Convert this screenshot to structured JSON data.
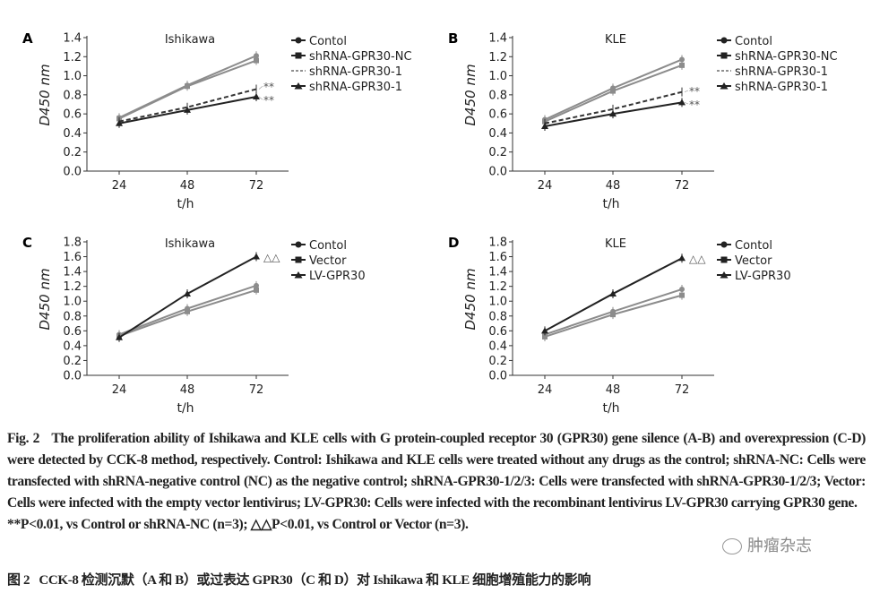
{
  "chart_data": [
    {
      "panel": "A",
      "type": "line",
      "title": "Ishikawa",
      "xlabel": "t/h",
      "ylabel": "D450 nm",
      "x": [
        24,
        48,
        72
      ],
      "ylim": [
        0,
        1.4
      ],
      "yticks": [
        0.0,
        0.2,
        0.4,
        0.6,
        0.8,
        1.0,
        1.2,
        1.4
      ],
      "series": [
        {
          "name": "Contol",
          "marker": "circle",
          "color": "#8c8c8c",
          "dash": false,
          "values": [
            0.56,
            0.9,
            1.21
          ]
        },
        {
          "name": "shRNA-GPR30-NC",
          "marker": "square",
          "color": "#8c8c8c",
          "dash": false,
          "values": [
            0.55,
            0.89,
            1.16
          ]
        },
        {
          "name": "shRNA-GPR30-1",
          "marker": "none",
          "color": "#333333",
          "dash": true,
          "values": [
            0.52,
            0.67,
            0.86
          ],
          "annotation": "**"
        },
        {
          "name": "shRNA-GPR30-1",
          "marker": "triangle",
          "color": "#222222",
          "dash": false,
          "values": [
            0.5,
            0.64,
            0.78
          ],
          "annotation": "**"
        }
      ]
    },
    {
      "panel": "B",
      "type": "line",
      "title": "KLE",
      "xlabel": "t/h",
      "ylabel": "D450 nm",
      "x": [
        24,
        48,
        72
      ],
      "ylim": [
        0,
        1.4
      ],
      "yticks": [
        0.0,
        0.2,
        0.4,
        0.6,
        0.8,
        1.0,
        1.2,
        1.4
      ],
      "series": [
        {
          "name": "Contol",
          "marker": "circle",
          "color": "#8c8c8c",
          "dash": false,
          "values": [
            0.54,
            0.87,
            1.17
          ]
        },
        {
          "name": "shRNA-GPR30-NC",
          "marker": "square",
          "color": "#8c8c8c",
          "dash": false,
          "values": [
            0.52,
            0.84,
            1.11
          ]
        },
        {
          "name": "shRNA-GPR30-1",
          "marker": "none",
          "color": "#333333",
          "dash": true,
          "values": [
            0.5,
            0.65,
            0.83
          ],
          "annotation": "**"
        },
        {
          "name": "shRNA-GPR30-1",
          "marker": "triangle",
          "color": "#222222",
          "dash": false,
          "values": [
            0.47,
            0.6,
            0.72
          ],
          "annotation": "**"
        }
      ]
    },
    {
      "panel": "C",
      "type": "line",
      "title": "Ishikawa",
      "xlabel": "t/h",
      "ylabel": "D450 nm",
      "x": [
        24,
        48,
        72
      ],
      "ylim": [
        0,
        1.8
      ],
      "yticks": [
        0.0,
        0.2,
        0.4,
        0.6,
        0.8,
        1.0,
        1.2,
        1.4,
        1.6,
        1.8
      ],
      "series": [
        {
          "name": "Contol",
          "marker": "circle",
          "color": "#8c8c8c",
          "dash": false,
          "values": [
            0.55,
            0.9,
            1.21
          ]
        },
        {
          "name": "Vector",
          "marker": "square",
          "color": "#8c8c8c",
          "dash": false,
          "values": [
            0.53,
            0.86,
            1.15
          ]
        },
        {
          "name": "LV-GPR30",
          "marker": "triangle",
          "color": "#222222",
          "dash": false,
          "values": [
            0.51,
            1.1,
            1.6
          ],
          "annotation": "△△"
        }
      ]
    },
    {
      "panel": "D",
      "type": "line",
      "title": "KLE",
      "xlabel": "t/h",
      "ylabel": "D450 nm",
      "x": [
        24,
        48,
        72
      ],
      "ylim": [
        0,
        1.8
      ],
      "yticks": [
        0.0,
        0.2,
        0.4,
        0.6,
        0.8,
        1.0,
        1.2,
        1.4,
        1.6,
        1.8
      ],
      "series": [
        {
          "name": "Contol",
          "marker": "circle",
          "color": "#8c8c8c",
          "dash": false,
          "values": [
            0.55,
            0.86,
            1.16
          ]
        },
        {
          "name": "Vector",
          "marker": "square",
          "color": "#8c8c8c",
          "dash": false,
          "values": [
            0.52,
            0.82,
            1.08
          ]
        },
        {
          "name": "LV-GPR30",
          "marker": "triangle",
          "color": "#222222",
          "dash": false,
          "values": [
            0.6,
            1.1,
            1.58
          ],
          "annotation": "△△"
        }
      ]
    }
  ],
  "caption_en": {
    "fig_label": "Fig. 2",
    "text": "The proliferation ability of Ishikawa and KLE cells with G protein-coupled receptor 30 (GPR30) gene silence (A-B) and overexpression (C-D) were detected by CCK-8 method, respectively. Control: Ishikawa and KLE cells were treated without any drugs as the control; shRNA-NC: Cells were transfected with shRNA-negative control (NC) as the negative control; shRNA-GPR30-1/2/3: Cells were transfected with shRNA-GPR30-1/2/3; Vector: Cells were infected with the empty vector lentivirus; LV-GPR30: Cells were infected with the recombinant lentivirus LV-GPR30 carrying GPR30 gene.",
    "stats": "**P<0.01, vs Control or shRNA-NC (n=3); △△P<0.01, vs Control or Vector (n=3)."
  },
  "caption_zh": {
    "fig_label": "图 2",
    "text": "CCK-8 检测沉默（A 和 B）或过表达 GPR30（C 和 D）对 Ishikawa 和 KLE 细胞增殖能力的影响"
  },
  "watermark": "肿瘤杂志"
}
